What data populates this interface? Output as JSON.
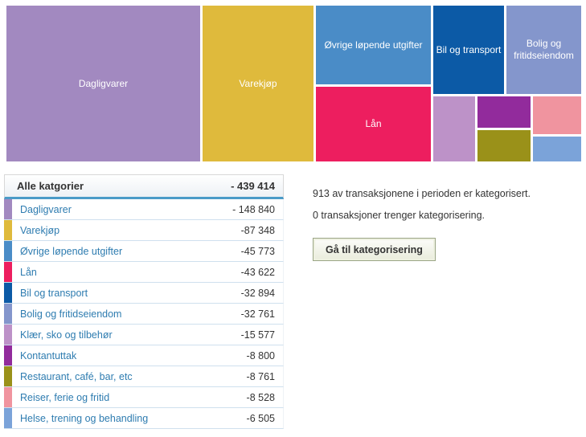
{
  "colors": {
    "header_rule_blue": "#4a9bc8",
    "row_separator": "#cfe0ee",
    "link_blue": "#2e7cb0"
  },
  "treemap": {
    "blocks": [
      {
        "label": "Dagligvarer",
        "color": "#a289c0"
      },
      {
        "label": "Varekjøp",
        "color": "#dfba3c"
      },
      {
        "label": "Øvrige løpende utgifter",
        "color": "#4a8cc7"
      },
      {
        "label": "Lån",
        "color": "#ed1e5f"
      },
      {
        "label": "Bil og transport",
        "color": "#0c5aa6"
      },
      {
        "label": "Bolig og fritidseiendom",
        "color": "#8496cc"
      },
      {
        "label": "",
        "color": "#bd92c8"
      },
      {
        "label": "",
        "color": "#922b9c"
      },
      {
        "label": "",
        "color": "#9a9119"
      },
      {
        "label": "",
        "color": "#f0949f"
      },
      {
        "label": "",
        "color": "#7ba3d9"
      }
    ]
  },
  "table": {
    "header": {
      "label": "Alle katgorier",
      "amount": "- 439 414"
    },
    "rows": [
      {
        "label": "Dagligvarer",
        "amount": "- 148 840",
        "color": "#a289c0"
      },
      {
        "label": "Varekjøp",
        "amount": "-87 348",
        "color": "#dfba3c"
      },
      {
        "label": "Øvrige løpende utgifter",
        "amount": "-45 773",
        "color": "#4a8cc7"
      },
      {
        "label": "Lån",
        "amount": "-43 622",
        "color": "#ed1e5f"
      },
      {
        "label": "Bil og transport",
        "amount": "-32 894",
        "color": "#0c5aa6"
      },
      {
        "label": "Bolig og fritidseiendom",
        "amount": "-32 761",
        "color": "#8496cc"
      },
      {
        "label": "Klær, sko og tilbehør",
        "amount": "-15 577",
        "color": "#bd92c8"
      },
      {
        "label": "Kontantuttak",
        "amount": "-8 800",
        "color": "#922b9c"
      },
      {
        "label": "Restaurant, café, bar, etc",
        "amount": "-8 761",
        "color": "#9a9119"
      },
      {
        "label": "Reiser, ferie og fritid",
        "amount": "-8 528",
        "color": "#f0949f"
      },
      {
        "label": "Helse, trening og behandling",
        "amount": "-6 505",
        "color": "#7ba3d9"
      }
    ]
  },
  "panel": {
    "line1": "913 av transaksjonene i perioden er kategorisert.",
    "line2": "0 transaksjoner trenger kategorisering.",
    "button_label": "Gå til kategorisering"
  }
}
